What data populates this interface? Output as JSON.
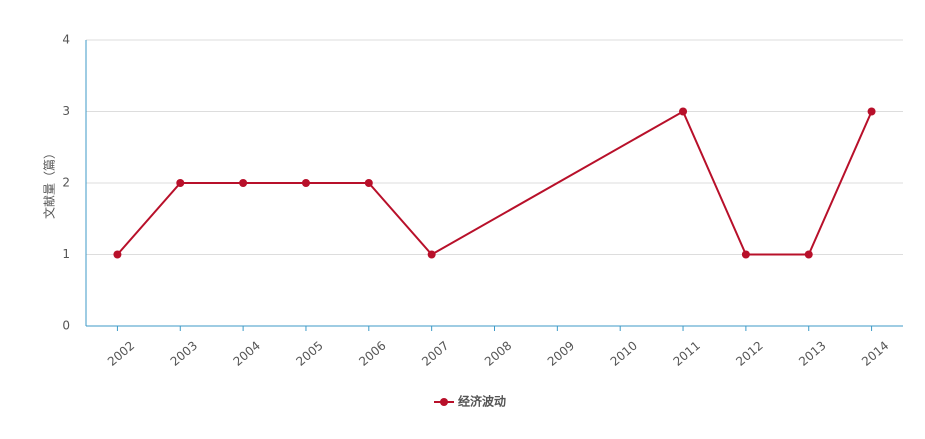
{
  "chart_data": {
    "type": "line",
    "y_label": "文献量（篇）",
    "x": [
      2002,
      2003,
      2004,
      2005,
      2006,
      2007,
      2011,
      2012,
      2013,
      2014
    ],
    "series": [
      {
        "name": "经济波动",
        "color": "#b8102a",
        "values": [
          1,
          2,
          2,
          2,
          2,
          1,
          3,
          1,
          1,
          3
        ]
      }
    ],
    "xlim": [
      2001.5,
      2014.5
    ],
    "xticks": [
      2002,
      2003,
      2004,
      2005,
      2006,
      2007,
      2008,
      2009,
      2010,
      2011,
      2012,
      2013,
      2014
    ],
    "ylim": [
      0,
      4
    ],
    "yticks": [
      0,
      1,
      2,
      3,
      4
    ],
    "grid": true,
    "legend": "bottom"
  }
}
